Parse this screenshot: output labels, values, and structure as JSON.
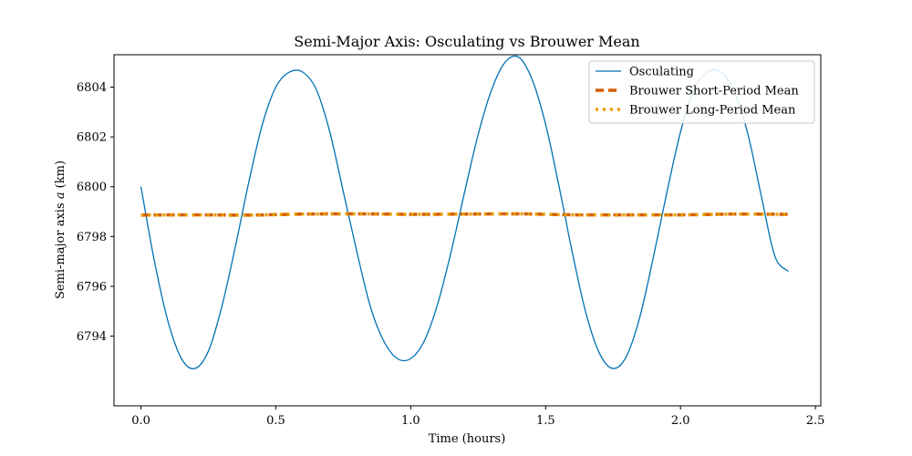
{
  "chart_data": {
    "type": "line",
    "title": "Semi-Major Axis: Osculating vs Brouwer Mean",
    "xlabel": "Time (hours)",
    "ylabel_prefix": "Semi-major axis ",
    "ylabel_var": "a",
    "ylabel_suffix": " (km)",
    "xlim": [
      -0.1,
      2.52
    ],
    "ylim": [
      6791.2,
      6805.3
    ],
    "xticks": [
      0.0,
      0.5,
      1.0,
      1.5,
      2.0,
      2.5
    ],
    "xtick_labels": [
      "0.0",
      "0.5",
      "1.0",
      "1.5",
      "2.0",
      "2.5"
    ],
    "yticks": [
      6794,
      6796,
      6798,
      6800,
      6802,
      6804
    ],
    "ytick_labels": [
      "6794",
      "6796",
      "6798",
      "6800",
      "6802",
      "6804"
    ],
    "grid": false,
    "legend_position": "top-right",
    "series": [
      {
        "name": "Osculating",
        "color": "#0072B2",
        "style": "solid",
        "x": [
          0.0,
          0.05,
          0.1,
          0.15,
          0.2,
          0.25,
          0.3,
          0.35,
          0.4,
          0.45,
          0.5,
          0.55,
          0.6,
          0.65,
          0.7,
          0.75,
          0.8,
          0.85,
          0.9,
          0.95,
          1.0,
          1.05,
          1.1,
          1.15,
          1.2,
          1.25,
          1.3,
          1.35,
          1.4,
          1.45,
          1.5,
          1.55,
          1.6,
          1.65,
          1.7,
          1.75,
          1.8,
          1.85,
          1.9,
          1.95,
          2.0,
          2.05,
          2.1,
          2.15,
          2.2,
          2.25,
          2.3,
          2.35,
          2.4
        ],
        "y": [
          6800.0,
          6797.0,
          6794.6,
          6793.1,
          6792.7,
          6793.4,
          6795.2,
          6797.6,
          6800.2,
          6802.5,
          6804.0,
          6804.6,
          6804.6,
          6803.9,
          6802.2,
          6799.8,
          6797.4,
          6795.2,
          6793.8,
          6793.1,
          6793.1,
          6793.8,
          6795.3,
          6797.4,
          6799.8,
          6802.1,
          6803.9,
          6805.0,
          6805.2,
          6804.3,
          6802.5,
          6800.0,
          6797.3,
          6794.9,
          6793.3,
          6792.7,
          6793.2,
          6794.8,
          6797.2,
          6799.8,
          6802.2,
          6803.9,
          6804.6,
          6804.6,
          6803.8,
          6802.1,
          6799.6,
          6797.2,
          6796.6
        ]
      },
      {
        "name": "Brouwer Short-Period Mean",
        "color": "#D55E00",
        "style": "dashed",
        "x": [
          0.0,
          0.2,
          0.4,
          0.6,
          0.8,
          1.0,
          1.2,
          1.4,
          1.6,
          1.8,
          2.0,
          2.2,
          2.4
        ],
        "y": [
          6798.86,
          6798.87,
          6798.86,
          6798.9,
          6798.91,
          6798.89,
          6798.9,
          6798.91,
          6798.87,
          6798.87,
          6798.87,
          6798.9,
          6798.89
        ]
      },
      {
        "name": "Brouwer Long-Period Mean",
        "color": "#E69F00",
        "style": "dotted",
        "x": [
          0.0,
          0.2,
          0.4,
          0.6,
          0.8,
          1.0,
          1.2,
          1.4,
          1.6,
          1.8,
          2.0,
          2.2,
          2.4
        ],
        "y": [
          6798.86,
          6798.87,
          6798.86,
          6798.9,
          6798.91,
          6798.89,
          6798.9,
          6798.91,
          6798.87,
          6798.87,
          6798.87,
          6798.9,
          6798.89
        ]
      }
    ]
  }
}
